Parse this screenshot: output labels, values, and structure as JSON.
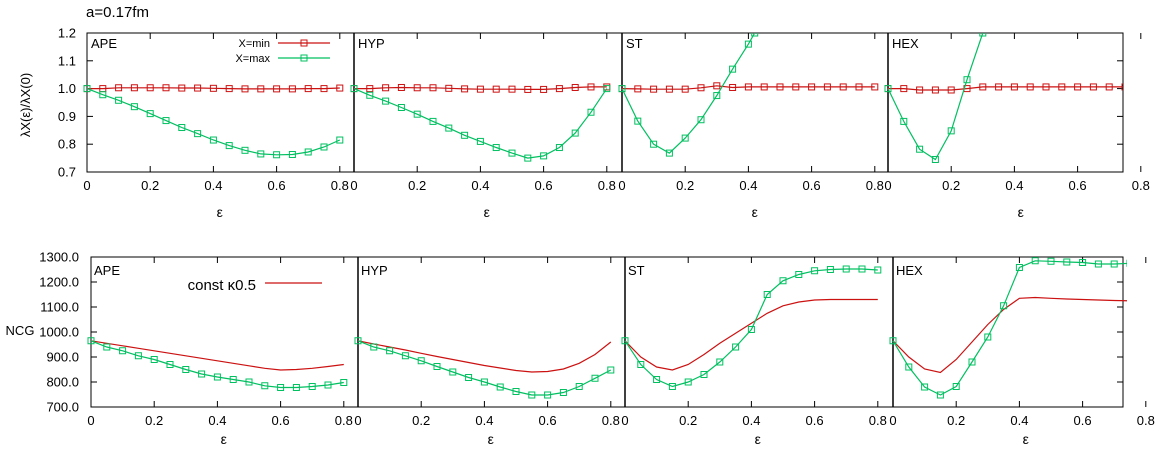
{
  "figure": {
    "header": "a=0.17fm"
  },
  "colors": {
    "min": "#cc1111",
    "max": "#00c060",
    "axis": "#000000"
  },
  "chart_data": [
    {
      "type": "line",
      "row": "top",
      "ylabel": "λX(ε)/λX(0)",
      "xlabel": "ε",
      "ylim": [
        0.7,
        1.2
      ],
      "yticks": [
        "0.7",
        "0.8",
        "0.9",
        "1.0",
        "1.1",
        "1.2"
      ],
      "legend": {
        "position": "top-right",
        "entries": [
          "X=min",
          "X=max"
        ]
      },
      "panels": [
        {
          "label": "APE",
          "xlim": [
            0,
            0.85
          ],
          "xticks": [
            "0",
            "0.2",
            "0.4",
            "0.6",
            "0.8"
          ],
          "series": [
            {
              "name": "X=min",
              "x": [
                0,
                0.05,
                0.1,
                0.15,
                0.2,
                0.25,
                0.3,
                0.35,
                0.4,
                0.45,
                0.5,
                0.55,
                0.6,
                0.65,
                0.7,
                0.75,
                0.8
              ],
              "y": [
                1.0,
                1.0,
                1.003,
                1.003,
                1.003,
                1.003,
                1.002,
                1.002,
                1.001,
                1.0,
                0.999,
                0.999,
                0.999,
                0.999,
                1.0,
                1.0,
                1.002
              ]
            },
            {
              "name": "X=max",
              "x": [
                0,
                0.05,
                0.1,
                0.15,
                0.2,
                0.25,
                0.3,
                0.35,
                0.4,
                0.45,
                0.5,
                0.55,
                0.6,
                0.65,
                0.7,
                0.75,
                0.8
              ],
              "y": [
                1.0,
                0.978,
                0.958,
                0.935,
                0.91,
                0.885,
                0.86,
                0.838,
                0.815,
                0.795,
                0.778,
                0.765,
                0.762,
                0.763,
                0.772,
                0.79,
                0.815
              ]
            }
          ]
        },
        {
          "label": "HYP",
          "xlim": [
            0,
            0.85
          ],
          "xticks": [
            "0",
            "0.2",
            "0.4",
            "0.6",
            "0.8"
          ],
          "series": [
            {
              "name": "X=min",
              "x": [
                0,
                0.05,
                0.1,
                0.15,
                0.2,
                0.25,
                0.3,
                0.35,
                0.4,
                0.45,
                0.5,
                0.55,
                0.6,
                0.65,
                0.7,
                0.75,
                0.8
              ],
              "y": [
                1.0,
                1.0,
                1.003,
                1.004,
                1.003,
                1.003,
                1.001,
                0.999,
                0.998,
                0.998,
                0.998,
                0.997,
                0.997,
                1.0,
                1.004,
                1.006,
                1.006
              ]
            },
            {
              "name": "X=max",
              "x": [
                0,
                0.05,
                0.1,
                0.15,
                0.2,
                0.25,
                0.3,
                0.35,
                0.4,
                0.45,
                0.5,
                0.55,
                0.6,
                0.65,
                0.7,
                0.75,
                0.8
              ],
              "y": [
                1.0,
                0.976,
                0.955,
                0.932,
                0.908,
                0.882,
                0.858,
                0.832,
                0.81,
                0.788,
                0.768,
                0.75,
                0.758,
                0.788,
                0.84,
                0.915,
                1.0
              ]
            }
          ]
        },
        {
          "label": "ST",
          "xlim": [
            0,
            0.85
          ],
          "xticks": [
            "0",
            "0.2",
            "0.4",
            "0.6",
            "0.8"
          ],
          "series": [
            {
              "name": "X=min",
              "x": [
                0,
                0.05,
                0.1,
                0.15,
                0.2,
                0.25,
                0.3,
                0.35,
                0.4,
                0.45,
                0.5,
                0.55,
                0.6,
                0.65,
                0.7,
                0.75,
                0.8
              ],
              "y": [
                1.0,
                0.999,
                0.998,
                0.998,
                0.998,
                1.003,
                1.01,
                1.004,
                1.006,
                1.006,
                1.006,
                1.006,
                1.006,
                1.006,
                1.006,
                1.006,
                1.006
              ]
            },
            {
              "name": "X=max",
              "x": [
                0,
                0.05,
                0.1,
                0.15,
                0.2,
                0.25,
                0.3,
                0.35,
                0.4,
                0.42
              ],
              "y": [
                1.0,
                0.883,
                0.8,
                0.768,
                0.822,
                0.888,
                0.975,
                1.07,
                1.16,
                1.2
              ]
            }
          ]
        },
        {
          "label": "HEX",
          "xlim": [
            0,
            0.85
          ],
          "xticks": [
            "0",
            "0.2",
            "0.4",
            "0.6",
            "0.8"
          ],
          "series": [
            {
              "name": "X=min",
              "x": [
                0,
                0.05,
                0.1,
                0.15,
                0.2,
                0.25,
                0.3,
                0.35,
                0.4,
                0.45,
                0.5,
                0.55,
                0.6,
                0.65,
                0.7,
                0.75
              ],
              "y": [
                1.0,
                1.0,
                0.995,
                0.995,
                0.995,
                1.0,
                1.006,
                1.006,
                1.006,
                1.006,
                1.006,
                1.006,
                1.006,
                1.006,
                1.006,
                1.006
              ]
            },
            {
              "name": "X=max",
              "x": [
                0,
                0.05,
                0.1,
                0.15,
                0.2,
                0.25,
                0.3
              ],
              "y": [
                1.0,
                0.882,
                0.782,
                0.745,
                0.848,
                1.032,
                1.2
              ]
            }
          ]
        }
      ]
    },
    {
      "type": "line",
      "row": "bottom",
      "ylabel": "NCG",
      "xlabel": "ε",
      "ylim": [
        700,
        1300
      ],
      "yticks": [
        "700.0",
        "800.0",
        "900.0",
        "1000.0",
        "1100.0",
        "1200.0",
        "1300.0"
      ],
      "legend": {
        "position": "top",
        "entries": [
          "const κ0.5"
        ]
      },
      "panels": [
        {
          "label": "APE",
          "xlim": [
            0,
            0.85
          ],
          "xticks": [
            "0",
            "0.2",
            "0.4",
            "0.6",
            "0.8"
          ],
          "series": [
            {
              "name": "const κ0.5",
              "x": [
                0,
                0.05,
                0.1,
                0.15,
                0.2,
                0.25,
                0.3,
                0.35,
                0.4,
                0.45,
                0.5,
                0.55,
                0.6,
                0.65,
                0.7,
                0.75,
                0.8
              ],
              "y": [
                965,
                955,
                945,
                935,
                925,
                915,
                905,
                895,
                885,
                875,
                865,
                855,
                848,
                850,
                855,
                862,
                870
              ]
            },
            {
              "name": "",
              "x": [
                0,
                0.05,
                0.1,
                0.15,
                0.2,
                0.25,
                0.3,
                0.35,
                0.4,
                0.45,
                0.5,
                0.55,
                0.6,
                0.65,
                0.7,
                0.75,
                0.8
              ],
              "y": [
                965,
                940,
                925,
                905,
                890,
                870,
                850,
                832,
                820,
                810,
                800,
                785,
                778,
                778,
                782,
                788,
                798
              ]
            }
          ]
        },
        {
          "label": "HYP",
          "xlim": [
            0,
            0.85
          ],
          "xticks": [
            "0",
            "0.2",
            "0.4",
            "0.6",
            "0.8"
          ],
          "series": [
            {
              "name": "const κ0.5",
              "x": [
                0,
                0.05,
                0.1,
                0.15,
                0.2,
                0.25,
                0.3,
                0.35,
                0.4,
                0.45,
                0.5,
                0.55,
                0.6,
                0.65,
                0.7,
                0.75,
                0.8
              ],
              "y": [
                965,
                952,
                940,
                928,
                915,
                902,
                890,
                878,
                866,
                856,
                846,
                840,
                842,
                852,
                875,
                910,
                960
              ]
            },
            {
              "name": "",
              "x": [
                0,
                0.05,
                0.1,
                0.15,
                0.2,
                0.25,
                0.3,
                0.35,
                0.4,
                0.45,
                0.5,
                0.55,
                0.6,
                0.65,
                0.7,
                0.75,
                0.8
              ],
              "y": [
                965,
                940,
                925,
                905,
                885,
                862,
                840,
                818,
                800,
                780,
                762,
                748,
                748,
                758,
                782,
                815,
                848
              ]
            }
          ]
        },
        {
          "label": "ST",
          "xlim": [
            0,
            0.85
          ],
          "xticks": [
            "0",
            "0.2",
            "0.4",
            "0.6",
            "0.8"
          ],
          "series": [
            {
              "name": "const κ0.5",
              "x": [
                0,
                0.05,
                0.1,
                0.15,
                0.2,
                0.25,
                0.3,
                0.35,
                0.4,
                0.45,
                0.5,
                0.55,
                0.6,
                0.65,
                0.7,
                0.75,
                0.8
              ],
              "y": [
                965,
                900,
                860,
                848,
                870,
                910,
                955,
                995,
                1035,
                1075,
                1105,
                1120,
                1128,
                1130,
                1130,
                1130,
                1130
              ]
            },
            {
              "name": "",
              "x": [
                0,
                0.05,
                0.1,
                0.15,
                0.2,
                0.25,
                0.3,
                0.35,
                0.4,
                0.45,
                0.5,
                0.55,
                0.6,
                0.65,
                0.7,
                0.75,
                0.8
              ],
              "y": [
                965,
                870,
                810,
                782,
                800,
                830,
                880,
                940,
                1010,
                1150,
                1205,
                1230,
                1245,
                1250,
                1252,
                1252,
                1248
              ]
            }
          ]
        },
        {
          "label": "HEX",
          "xlim": [
            0,
            0.85
          ],
          "xticks": [
            "0",
            "0.2",
            "0.4",
            "0.6",
            "0.8"
          ],
          "series": [
            {
              "name": "const κ0.5",
              "x": [
                0,
                0.05,
                0.1,
                0.15,
                0.2,
                0.25,
                0.3,
                0.35,
                0.4,
                0.45,
                0.5,
                0.55,
                0.6,
                0.65,
                0.7,
                0.75
              ],
              "y": [
                965,
                900,
                852,
                838,
                890,
                960,
                1030,
                1090,
                1135,
                1138,
                1135,
                1132,
                1130,
                1128,
                1126,
                1125
              ]
            },
            {
              "name": "",
              "x": [
                0,
                0.05,
                0.1,
                0.15,
                0.2,
                0.25,
                0.3,
                0.35,
                0.4,
                0.45,
                0.5,
                0.55,
                0.6,
                0.65,
                0.7,
                0.75
              ],
              "y": [
                965,
                860,
                780,
                748,
                782,
                880,
                980,
                1105,
                1258,
                1285,
                1283,
                1280,
                1278,
                1272,
                1272,
                1275
              ]
            }
          ]
        }
      ]
    }
  ]
}
